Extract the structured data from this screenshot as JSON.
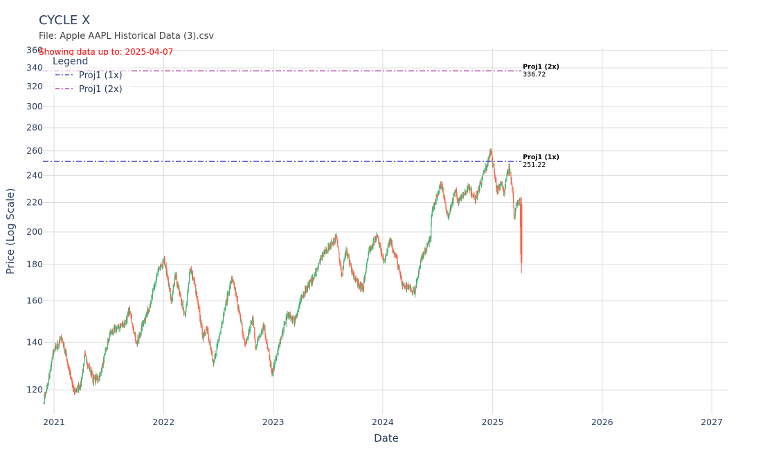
{
  "chart_data": {
    "type": "candlestick",
    "title": "CYCLE X",
    "subtitle": "File: Apple AAPL Historical Data (3).csv",
    "annotation_top": "Showing data up to: 2025-04-07",
    "xlabel": "Date",
    "ylabel": "Price (Log Scale)",
    "y_scale": "log",
    "ylim": [
      111,
      362
    ],
    "xlim": [
      "2020-11-25",
      "2027-02-25"
    ],
    "y_ticks": [
      120,
      140,
      160,
      180,
      200,
      220,
      240,
      260,
      280,
      300,
      320,
      340,
      360
    ],
    "x_ticks": [
      {
        "date": "2021-01-01",
        "label": "2021"
      },
      {
        "date": "2022-01-01",
        "label": "2022"
      },
      {
        "date": "2023-01-01",
        "label": "2023"
      },
      {
        "date": "2024-01-01",
        "label": "2024"
      },
      {
        "date": "2025-01-01",
        "label": "2025"
      },
      {
        "date": "2026-01-01",
        "label": "2026"
      },
      {
        "date": "2027-01-01",
        "label": "2027"
      }
    ],
    "grid": true,
    "legend_title": "Legend",
    "legend_position": "top-left",
    "increasing_color": "#3cb371",
    "decreasing_color": "#ff6347",
    "price_path": [
      [
        "2020-11-27",
        116
      ],
      [
        "2020-12-10",
        121
      ],
      [
        "2020-12-29",
        135
      ],
      [
        "2021-01-26",
        142
      ],
      [
        "2021-02-05",
        137
      ],
      [
        "2021-03-08",
        119
      ],
      [
        "2021-03-31",
        122
      ],
      [
        "2021-04-14",
        134
      ],
      [
        "2021-05-12",
        124
      ],
      [
        "2021-06-02",
        125
      ],
      [
        "2021-07-07",
        144
      ],
      [
        "2021-08-03",
        147
      ],
      [
        "2021-08-25",
        149
      ],
      [
        "2021-09-10",
        155
      ],
      [
        "2021-10-04",
        139
      ],
      [
        "2021-10-25",
        149
      ],
      [
        "2021-11-18",
        158
      ],
      [
        "2021-12-13",
        176
      ],
      [
        "2022-01-03",
        182
      ],
      [
        "2022-01-27",
        160
      ],
      [
        "2022-02-09",
        174
      ],
      [
        "2022-03-14",
        151
      ],
      [
        "2022-03-30",
        178
      ],
      [
        "2022-04-13",
        170
      ],
      [
        "2022-05-12",
        142
      ],
      [
        "2022-05-25",
        147
      ],
      [
        "2022-06-16",
        130
      ],
      [
        "2022-07-15",
        150
      ],
      [
        "2022-08-17",
        173
      ],
      [
        "2022-09-30",
        138
      ],
      [
        "2022-10-25",
        152
      ],
      [
        "2022-11-03",
        138
      ],
      [
        "2022-11-30",
        148
      ],
      [
        "2022-12-28",
        126
      ],
      [
        "2023-01-30",
        143
      ],
      [
        "2023-02-16",
        153
      ],
      [
        "2023-03-13",
        150
      ],
      [
        "2023-04-14",
        165
      ],
      [
        "2023-05-15",
        172
      ],
      [
        "2023-06-15",
        186
      ],
      [
        "2023-07-31",
        196
      ],
      [
        "2023-08-18",
        174
      ],
      [
        "2023-09-01",
        189
      ],
      [
        "2023-09-22",
        174
      ],
      [
        "2023-10-26",
        166
      ],
      [
        "2023-11-15",
        188
      ],
      [
        "2023-12-14",
        198
      ],
      [
        "2024-01-05",
        181
      ],
      [
        "2024-01-24",
        195
      ],
      [
        "2024-02-14",
        184
      ],
      [
        "2024-03-06",
        169
      ],
      [
        "2024-04-18",
        165
      ],
      [
        "2024-05-06",
        182
      ],
      [
        "2024-06-07",
        196
      ],
      [
        "2024-06-12",
        213
      ],
      [
        "2024-07-15",
        234
      ],
      [
        "2024-08-05",
        209
      ],
      [
        "2024-08-30",
        229
      ],
      [
        "2024-09-09",
        220
      ],
      [
        "2024-10-14",
        231
      ],
      [
        "2024-11-04",
        222
      ],
      [
        "2024-12-16",
        251
      ],
      [
        "2024-12-26",
        259
      ],
      [
        "2025-01-10",
        236
      ],
      [
        "2025-01-16",
        228
      ],
      [
        "2025-01-31",
        236
      ],
      [
        "2025-02-07",
        227
      ],
      [
        "2025-02-24",
        247
      ],
      [
        "2025-03-10",
        227
      ],
      [
        "2025-03-13",
        209
      ],
      [
        "2025-03-21",
        218
      ],
      [
        "2025-04-02",
        223
      ],
      [
        "2025-04-03",
        203
      ],
      [
        "2025-04-04",
        188
      ],
      [
        "2025-04-07",
        181
      ]
    ],
    "series": [
      {
        "name": "Proj1 (1x)",
        "value": 251.22,
        "label": "Proj1 (1x)",
        "value_label": "251.22",
        "start_date": "2020-11-25",
        "end_date": "2025-04-07",
        "color": "#4b55c8",
        "dash": "dashdot"
      },
      {
        "name": "Proj1 (2x)",
        "value": 336.72,
        "label": "Proj1 (2x)",
        "value_label": "336.72",
        "start_date": "2020-11-25",
        "end_date": "2025-04-07",
        "color": "#b447a8",
        "dash": "dashdot"
      }
    ]
  }
}
